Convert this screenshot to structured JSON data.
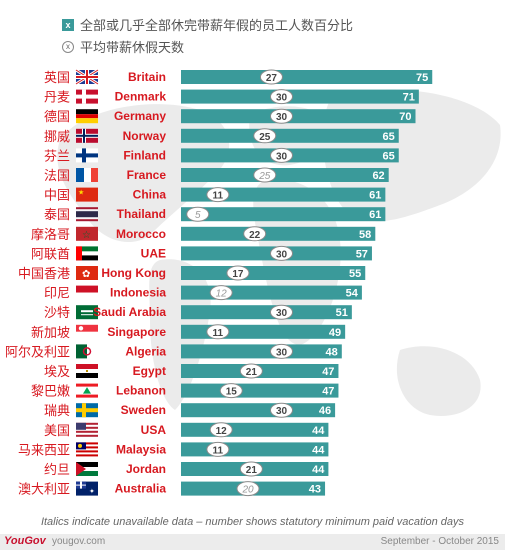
{
  "legend": {
    "box_label": "x",
    "circle_label": "x",
    "series1": "全部或几乎全部休完带薪年假的员工人数百分比",
    "series2": "平均带薪休假天数"
  },
  "footnote": "Italics indicate unavailable data – number shows statutory minimum paid vacation days",
  "footer": {
    "brand": "YouGov",
    "site": "yougov.com",
    "period": "September - October 2015"
  },
  "colors": {
    "bar": "#3a9a9a",
    "chinese_label": "#d71920",
    "english_label": "#d71920",
    "circle_border": "#8a8a8a"
  },
  "chart_data": {
    "type": "bar",
    "orientation": "horizontal",
    "xlim": [
      0,
      80
    ],
    "categories_cn": [
      "英国",
      "丹麦",
      "德国",
      "挪威",
      "芬兰",
      "法国",
      "中国",
      "泰国",
      "摩洛哥",
      "阿联酋",
      "中国香港",
      "印尼",
      "沙特",
      "新加坡",
      "阿尔及利亚",
      "埃及",
      "黎巴嫩",
      "瑞典",
      "美国",
      "马来西亚",
      "约旦",
      "澳大利亚"
    ],
    "categories": [
      "Britain",
      "Denmark",
      "Germany",
      "Norway",
      "Finland",
      "France",
      "China",
      "Thailand",
      "Morocco",
      "UAE",
      "Hong Kong",
      "Indonesia",
      "Saudi Arabia",
      "Singapore",
      "Algeria",
      "Egypt",
      "Lebanon",
      "Sweden",
      "USA",
      "Malaysia",
      "Jordan",
      "Australia"
    ],
    "flags": [
      "uk-flag",
      "denmark-flag",
      "germany-flag",
      "norway-flag",
      "finland-flag",
      "france-flag",
      "china-flag",
      "thailand-flag",
      "morocco-flag",
      "uae-flag",
      "hong-kong-flag",
      "indonesia-flag",
      "saudi-arabia-flag",
      "singapore-flag",
      "algeria-flag",
      "egypt-flag",
      "lebanon-flag",
      "sweden-flag",
      "usa-flag",
      "malaysia-flag",
      "jordan-flag",
      "australia-flag"
    ],
    "series": [
      {
        "name": "全部或几乎全部休完带薪年假的员工人数百分比",
        "values": [
          75,
          71,
          70,
          65,
          65,
          62,
          61,
          61,
          58,
          57,
          55,
          54,
          51,
          49,
          48,
          47,
          47,
          46,
          44,
          44,
          44,
          43
        ]
      },
      {
        "name": "平均带薪休假天数",
        "values": [
          27,
          30,
          30,
          25,
          30,
          25,
          11,
          5,
          22,
          30,
          17,
          12,
          30,
          11,
          30,
          21,
          15,
          30,
          12,
          11,
          21,
          20
        ],
        "italic": [
          false,
          false,
          false,
          false,
          false,
          true,
          false,
          true,
          false,
          false,
          false,
          true,
          false,
          false,
          false,
          false,
          false,
          false,
          false,
          false,
          false,
          true
        ]
      }
    ]
  }
}
